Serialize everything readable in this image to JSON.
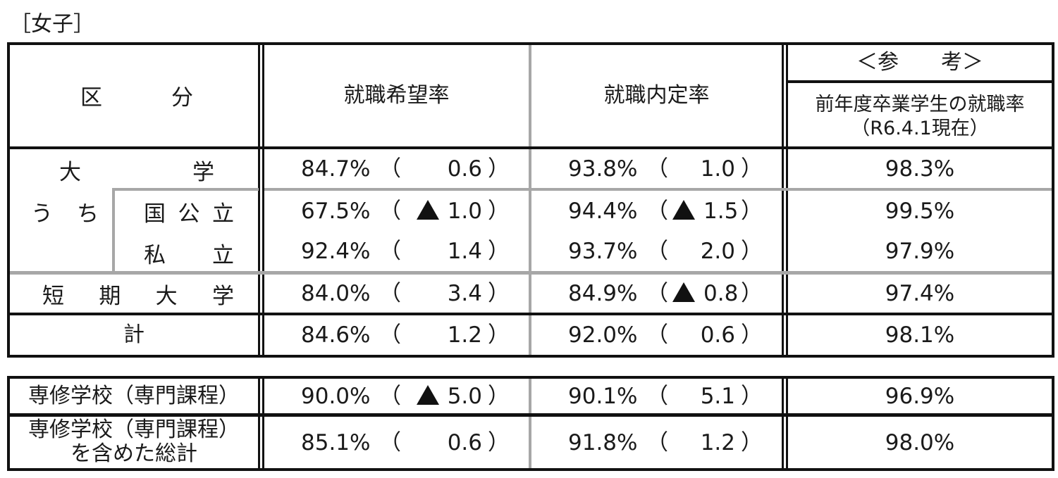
{
  "caption": "［女子］",
  "header": {
    "category": [
      "区",
      "分"
    ],
    "desire_rate": "就職希望率",
    "offer_rate": "就職内定率",
    "reference_title": "＜参　　考＞",
    "reference_sub1": "前年度卒業学生の就職率",
    "reference_sub2": "（R6.4.1現在）"
  },
  "uchi_label": [
    "う",
    "ち"
  ],
  "rows": [
    {
      "label": [
        "大",
        "学"
      ],
      "desire": "84.7%",
      "desire_diff": "0.6",
      "desire_neg": false,
      "offer": "93.8%",
      "offer_diff": "1.0",
      "offer_neg": false,
      "ref": "98.3%"
    },
    {
      "label": [
        "国",
        "公",
        "立"
      ],
      "desire": "67.5%",
      "desire_diff": "1.0",
      "desire_neg": true,
      "offer": "94.4%",
      "offer_diff": "1.5",
      "offer_neg": true,
      "ref": "99.5%"
    },
    {
      "label": [
        "私",
        "立"
      ],
      "desire": "92.4%",
      "desire_diff": "1.4",
      "desire_neg": false,
      "offer": "93.7%",
      "offer_diff": "2.0",
      "offer_neg": false,
      "ref": "97.9%"
    },
    {
      "label": [
        "短",
        "期",
        "大",
        "学"
      ],
      "desire": "84.0%",
      "desire_diff": "3.4",
      "desire_neg": false,
      "offer": "84.9%",
      "offer_diff": "0.8",
      "offer_neg": true,
      "ref": "97.4%"
    },
    {
      "label": [
        "計"
      ],
      "desire": "84.6%",
      "desire_diff": "1.2",
      "desire_neg": false,
      "offer": "92.0%",
      "offer_diff": "0.6",
      "offer_neg": false,
      "ref": "98.1%"
    },
    {
      "label": [
        "専修学校（専門課程）"
      ],
      "desire": "90.0%",
      "desire_diff": "5.0",
      "desire_neg": true,
      "offer": "90.1%",
      "offer_diff": "5.1",
      "offer_neg": false,
      "ref": "96.9%"
    },
    {
      "label": [
        "専修学校（専門課程）",
        "を含めた総計"
      ],
      "desire": "85.1%",
      "desire_diff": "0.6",
      "desire_neg": false,
      "offer": "91.8%",
      "offer_diff": "1.2",
      "offer_neg": false,
      "ref": "98.0%"
    }
  ],
  "paren_open": "（",
  "paren_close": "）",
  "negative_marker": "triangle-up-icon"
}
